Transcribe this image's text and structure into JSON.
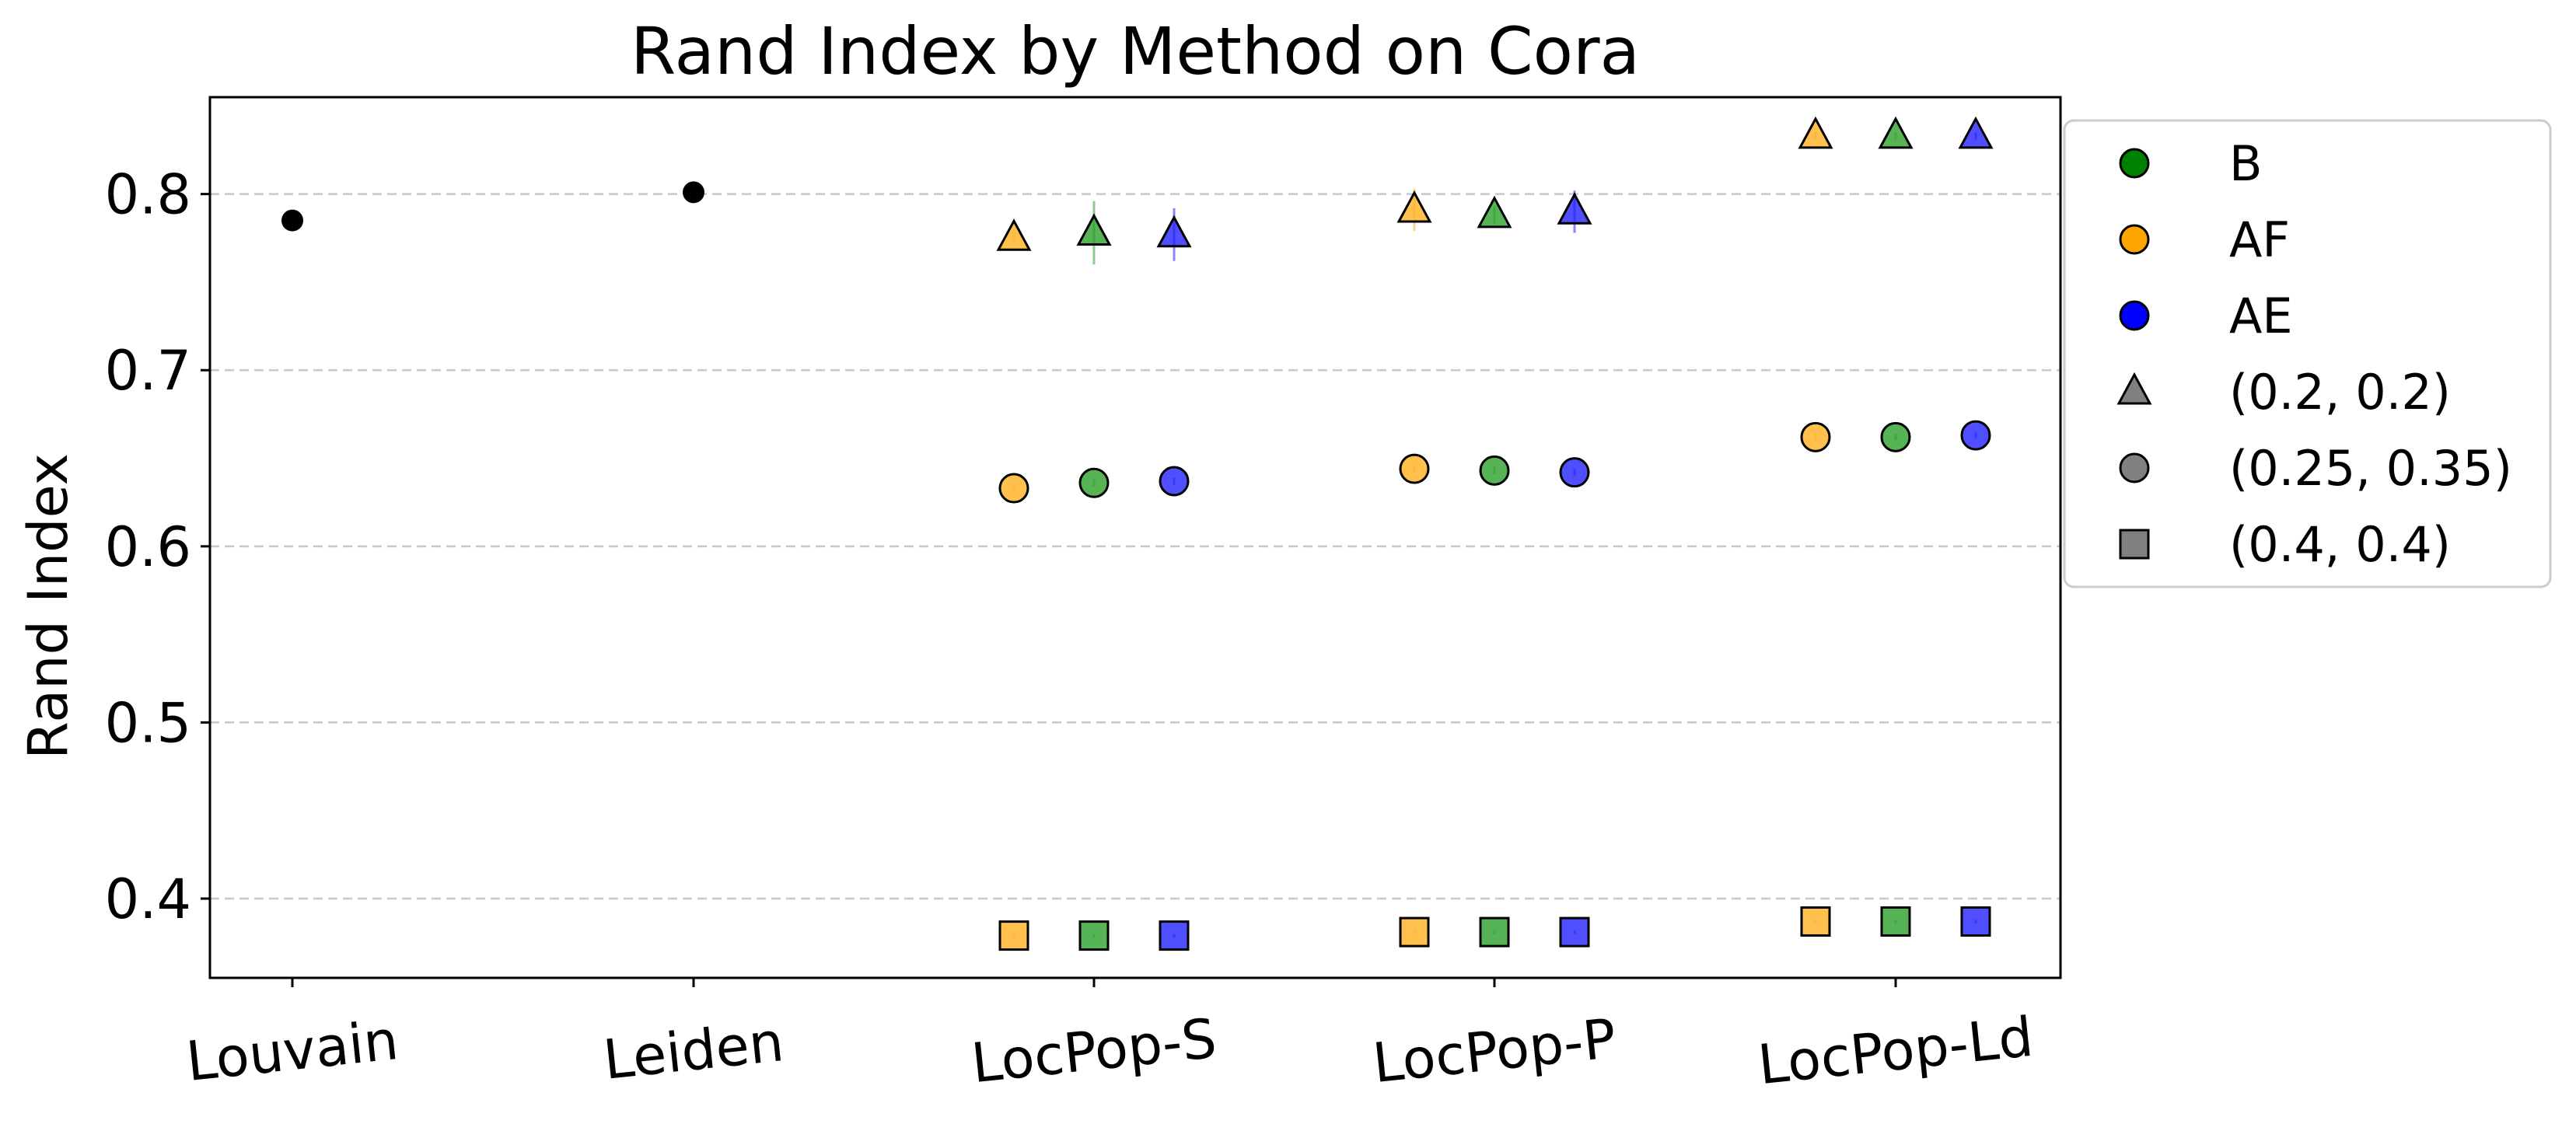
{
  "chart_data": {
    "type": "scatter",
    "title": "Rand Index by Method on Cora",
    "xlabel": "",
    "ylabel": "Rand Index",
    "categories": [
      "Louvain",
      "Leiden",
      "LocPop-S",
      "LocPop-P",
      "LocPop-Ld"
    ],
    "ylim": [
      0.355,
      0.855
    ],
    "yticks": [
      0.4,
      0.5,
      0.6,
      0.7,
      0.8
    ],
    "ytick_labels": [
      "0.4",
      "0.5",
      "0.6",
      "0.7",
      "0.8"
    ],
    "grid": "horizontal dashed",
    "legend_position": "outside right, top",
    "colors": {
      "B": "#2ca02c",
      "AF": "#ffb020",
      "AE": "#2323ff",
      "baseline": "#000000",
      "legend_neutral": "#808080"
    },
    "baselines": [
      {
        "category": "Louvain",
        "value": 0.785
      },
      {
        "category": "Leiden",
        "value": 0.801
      }
    ],
    "series": [
      {
        "name": "AF",
        "marker_set": "(0.2, 0.2)",
        "marker": "triangle",
        "values": [
          null,
          null,
          0.775,
          0.791,
          0.833
        ],
        "errors": [
          null,
          null,
          0.003,
          0.012,
          0.002
        ]
      },
      {
        "name": "B",
        "marker_set": "(0.2, 0.2)",
        "marker": "triangle",
        "values": [
          null,
          null,
          0.778,
          0.788,
          0.833
        ],
        "errors": [
          null,
          null,
          0.018,
          0.005,
          0.002
        ]
      },
      {
        "name": "AE",
        "marker_set": "(0.2, 0.2)",
        "marker": "triangle",
        "values": [
          null,
          null,
          0.777,
          0.79,
          0.833
        ],
        "errors": [
          null,
          null,
          0.015,
          0.012,
          0.002
        ]
      },
      {
        "name": "AF",
        "marker_set": "(0.25, 0.35)",
        "marker": "circle",
        "values": [
          null,
          null,
          0.633,
          0.644,
          0.662
        ],
        "errors": [
          null,
          null,
          0.002,
          0.002,
          0.002
        ]
      },
      {
        "name": "B",
        "marker_set": "(0.25, 0.35)",
        "marker": "circle",
        "values": [
          null,
          null,
          0.636,
          0.643,
          0.662
        ],
        "errors": [
          null,
          null,
          0.002,
          0.002,
          0.002
        ]
      },
      {
        "name": "AE",
        "marker_set": "(0.25, 0.35)",
        "marker": "circle",
        "values": [
          null,
          null,
          0.637,
          0.642,
          0.663
        ],
        "errors": [
          null,
          null,
          0.002,
          0.002,
          0.002
        ]
      },
      {
        "name": "AF",
        "marker_set": "(0.4, 0.4)",
        "marker": "square",
        "values": [
          null,
          null,
          0.379,
          0.381,
          0.387
        ],
        "errors": [
          null,
          null,
          0.001,
          0.001,
          0.001
        ]
      },
      {
        "name": "B",
        "marker_set": "(0.4, 0.4)",
        "marker": "square",
        "values": [
          null,
          null,
          0.379,
          0.381,
          0.387
        ],
        "errors": [
          null,
          null,
          0.001,
          0.001,
          0.001
        ]
      },
      {
        "name": "AE",
        "marker_set": "(0.4, 0.4)",
        "marker": "square",
        "values": [
          null,
          null,
          0.379,
          0.381,
          0.387
        ],
        "errors": [
          null,
          null,
          0.001,
          0.001,
          0.001
        ]
      }
    ],
    "legend": [
      {
        "label": "B",
        "marker": "circle",
        "color": "#008000"
      },
      {
        "label": "AF",
        "marker": "circle",
        "color": "#ffa500"
      },
      {
        "label": "AE",
        "marker": "circle",
        "color": "#0000ff"
      },
      {
        "label": "(0.2, 0.2)",
        "marker": "triangle",
        "color": "#808080"
      },
      {
        "label": "(0.25, 0.35)",
        "marker": "circle",
        "color": "#808080"
      },
      {
        "label": "(0.4, 0.4)",
        "marker": "square",
        "color": "#808080"
      }
    ]
  }
}
